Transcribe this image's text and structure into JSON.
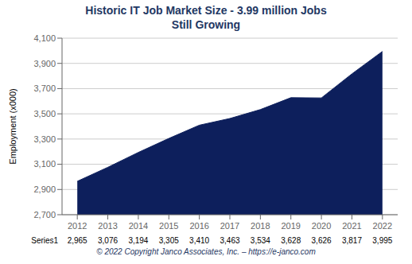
{
  "chart_data": {
    "type": "area",
    "title": "Historic IT Job Market Size  -  3.99 million Jobs",
    "subtitle": "Still Growing",
    "x": [
      2012,
      2013,
      2014,
      2015,
      2016,
      2017,
      2018,
      2019,
      2020,
      2021,
      2022
    ],
    "series": [
      {
        "name": "Series1",
        "color": "#0d1f5c",
        "values": [
          2965,
          3076,
          3194,
          3305,
          3410,
          3463,
          3534,
          3628,
          3626,
          3817,
          3995
        ],
        "value_labels": [
          "2,965",
          "3,076",
          "3,194",
          "3,305",
          "3,410",
          "3,463",
          "3,534",
          "3,628",
          "3,626",
          "3,817",
          "3,995"
        ]
      }
    ],
    "y_label": "Employment  (x000)",
    "xlim": [
      2011.5,
      2022.5
    ],
    "xticks": [
      2012,
      2013,
      2014,
      2015,
      2016,
      2017,
      2018,
      2019,
      2020,
      2021,
      2022
    ],
    "ylim": [
      2700,
      4100
    ],
    "yticks": [
      {
        "value": 2700,
        "label": "2,700"
      },
      {
        "value": 2900,
        "label": "2,900"
      },
      {
        "value": 3100,
        "label": "3,100"
      },
      {
        "value": 3300,
        "label": "3,300"
      },
      {
        "value": 3500,
        "label": "3,500"
      },
      {
        "value": 3700,
        "label": "3,700"
      },
      {
        "value": 3900,
        "label": "3,900"
      },
      {
        "value": 4100,
        "label": "4,100"
      }
    ],
    "grid": true,
    "data_labels": true,
    "annotations": [
      "© 2022 Copyright Janco Associates, Inc. – https://e-janco.com"
    ]
  }
}
